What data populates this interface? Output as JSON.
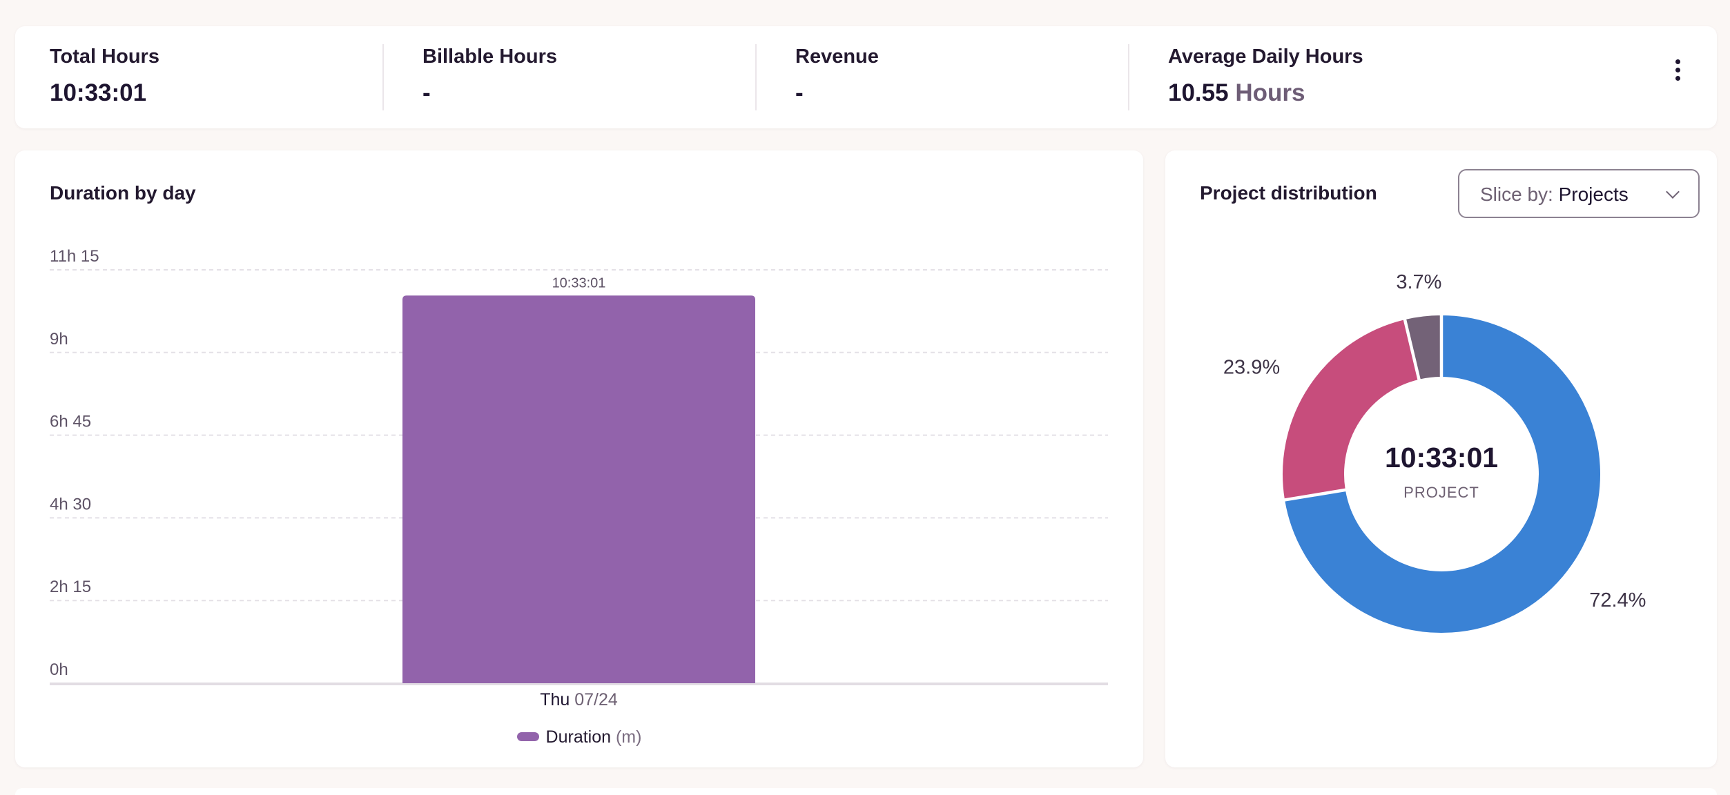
{
  "stats": {
    "items": [
      {
        "label": "Total Hours",
        "value": "10:33:01",
        "unit": ""
      },
      {
        "label": "Billable Hours",
        "value": "-",
        "unit": ""
      },
      {
        "label": "Revenue",
        "value": "-",
        "unit": ""
      },
      {
        "label": "Average Daily Hours",
        "value": "10.55",
        "unit": "Hours"
      }
    ],
    "menu_icon": "more-vertical-icon"
  },
  "duration_card": {
    "title": "Duration by day",
    "legend_label": "Duration",
    "legend_unit": "(m)"
  },
  "pie_card": {
    "title": "Project distribution",
    "slice_prefix": "Slice by:",
    "slice_value": "Projects",
    "center_value": "10:33:01",
    "center_label": "PROJECT"
  },
  "colors": {
    "bar": "#9263ab",
    "blue": "#3a82d5",
    "pink": "#c74d7c",
    "mauve": "#736277",
    "grid": "#e4e0e6",
    "axis": "#e2dde3"
  },
  "chart_data": [
    {
      "type": "bar",
      "title": "Duration by day",
      "categories": [
        "Thu 07/24"
      ],
      "category_parts": [
        {
          "day": "Thu",
          "date": "07/24"
        }
      ],
      "series": [
        {
          "name": "Duration (m)",
          "values": [
            633.02
          ],
          "value_labels": [
            "10:33:01"
          ]
        }
      ],
      "ylim": [
        0,
        675
      ],
      "yticks": [
        0,
        135,
        270,
        405,
        540,
        675
      ],
      "ytick_labels": [
        "0h",
        "2h 15",
        "4h 30",
        "6h 45",
        "9h",
        "11h 15"
      ],
      "grid": true,
      "legend": "bottom"
    },
    {
      "type": "pie",
      "title": "Project distribution",
      "donut": true,
      "slices": [
        {
          "value": 72.4,
          "label": "72.4%",
          "color": "#3a82d5"
        },
        {
          "value": 23.9,
          "label": "23.9%",
          "color": "#c74d7c"
        },
        {
          "value": 3.7,
          "label": "3.7%",
          "color": "#736277"
        }
      ]
    }
  ]
}
